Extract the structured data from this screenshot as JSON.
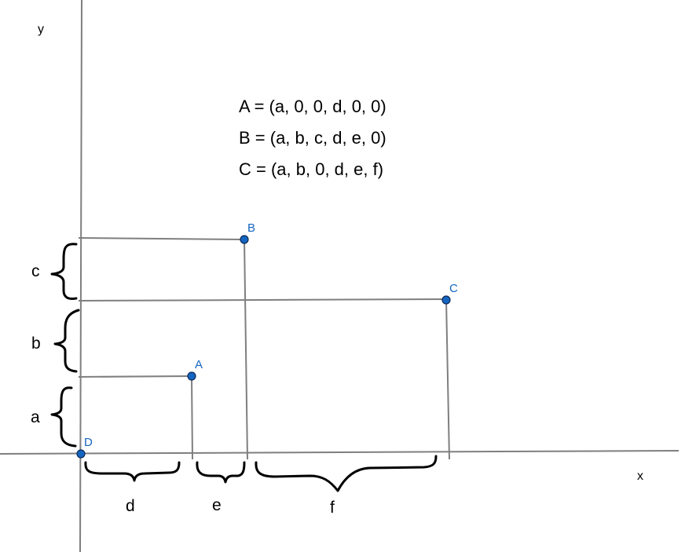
{
  "axes": {
    "x_label": "x",
    "y_label": "y"
  },
  "points": {
    "A": {
      "label": "A",
      "color": "#1565c0"
    },
    "B": {
      "label": "B",
      "color": "#1565c0"
    },
    "C": {
      "label": "C",
      "color": "#1565c0"
    },
    "D": {
      "label": "D",
      "color": "#1565c0"
    }
  },
  "braces": {
    "a": "a",
    "b": "b",
    "c": "c",
    "d": "d",
    "e": "e",
    "f": "f"
  },
  "formulas": [
    "A = (a, 0, 0, d, 0, 0)",
    "B = (a, b, c, d, e, 0)",
    "C = (a, b, 0, d, e, f)"
  ]
}
